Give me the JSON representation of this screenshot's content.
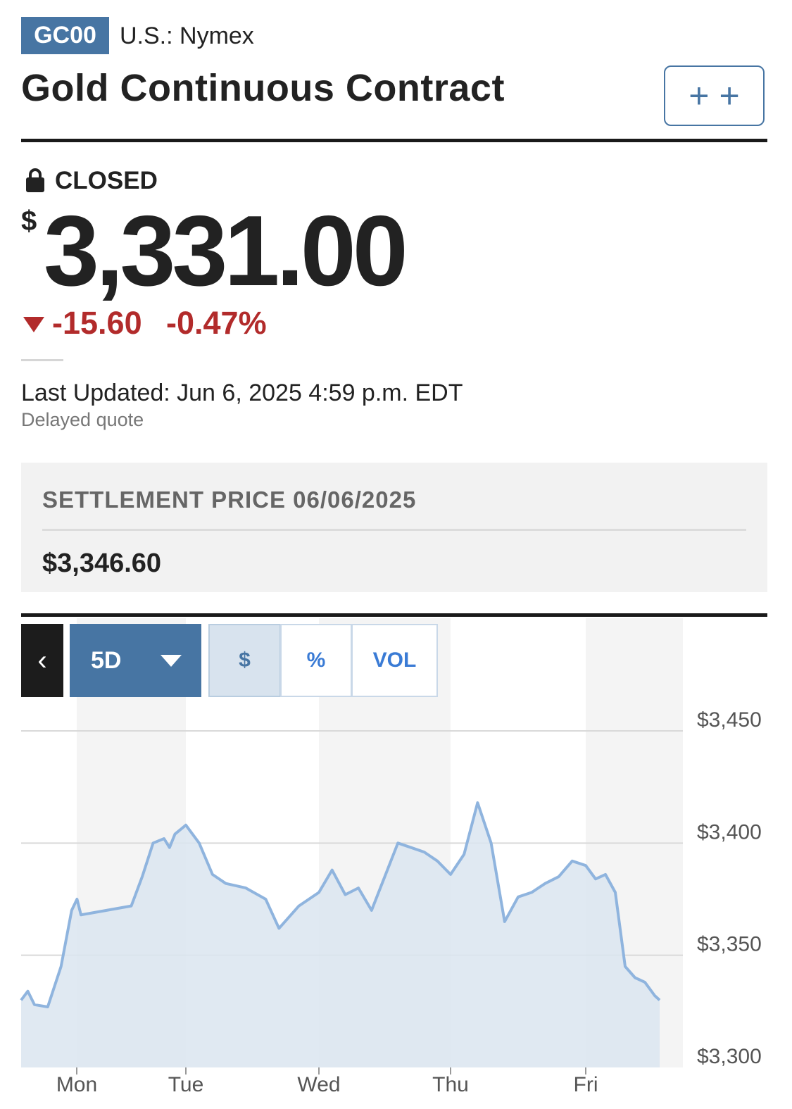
{
  "header": {
    "symbol": "GC00",
    "exchange": "U.S.: Nymex",
    "title": "Gold Continuous Contract",
    "add_button_label": "+ +"
  },
  "quote": {
    "status": "CLOSED",
    "currency_symbol": "$",
    "price": "3,331.00",
    "change": "-15.60",
    "change_percent": "-0.47%",
    "direction": "down",
    "last_updated": "Last Updated: Jun 6, 2025 4:59 p.m. EDT",
    "delay_note": "Delayed quote"
  },
  "settlement": {
    "label": "SETTLEMENT PRICE 06/06/2025",
    "value": "$3,346.60"
  },
  "chart_controls": {
    "back_label": "‹",
    "range_label": "5D",
    "modes": [
      "$",
      "%",
      "VOL"
    ],
    "selected_mode": "$"
  },
  "colors": {
    "accent": "#4775a3",
    "negative": "#b22b2b",
    "line": "#8fb4de",
    "area": "#dbe5f0"
  },
  "chart_data": {
    "type": "area",
    "x_labels": [
      "Mon",
      "Tue",
      "Wed",
      "Thu",
      "Fri"
    ],
    "y_ticks": [
      "$3,450",
      "$3,400",
      "$3,350",
      "$3,300"
    ],
    "ylim": [
      3300,
      3450
    ],
    "grid": true,
    "x": [
      0.0,
      0.05,
      0.1,
      0.2,
      0.3,
      0.38,
      0.42,
      0.45,
      0.5,
      0.6,
      0.7,
      0.8,
      0.85,
      0.9,
      1.0,
      1.1,
      1.2,
      1.3,
      1.45,
      1.6,
      1.7,
      1.85,
      2.0,
      2.1,
      2.2,
      2.3,
      2.4,
      2.5,
      2.6,
      2.7,
      2.8,
      2.9,
      3.0,
      3.1,
      3.2,
      3.3,
      3.4,
      3.5,
      3.6,
      3.7,
      3.8,
      3.9,
      4.0,
      4.1,
      4.2,
      4.3,
      4.4,
      4.5,
      4.6,
      4.7,
      4.75
    ],
    "values": [
      3330,
      3334,
      3328,
      3327,
      3345,
      3370,
      3375,
      3368,
      3372,
      3385,
      3400,
      3402,
      3398,
      3404,
      3408,
      3400,
      3386,
      3382,
      3380,
      3375,
      3362,
      3372,
      3378,
      3388,
      3377,
      3380,
      3370,
      3385,
      3400,
      3398,
      3396,
      3392,
      3386,
      3395,
      3418,
      3400,
      3365,
      3376,
      3378,
      3382,
      3385,
      3392,
      3390,
      3384,
      3386,
      3378,
      3345,
      3340,
      3338,
      3332,
      3330
    ]
  }
}
